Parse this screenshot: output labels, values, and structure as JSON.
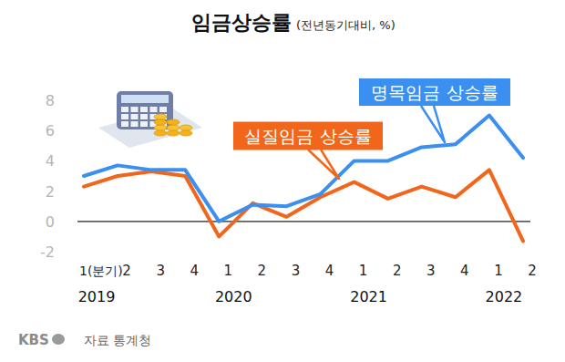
{
  "chart_data": {
    "type": "line",
    "title": "임금상승률",
    "subtitle": "(전년동기대비, %)",
    "categories": [
      "1(분기)",
      "2",
      "3",
      "4",
      "1",
      "2",
      "3",
      "4",
      "1",
      "2",
      "3",
      "4",
      "1",
      "2"
    ],
    "groups": [
      {
        "label": "2019",
        "start": 0
      },
      {
        "label": "2020",
        "start": 4
      },
      {
        "label": "2021",
        "start": 8
      },
      {
        "label": "2022",
        "start": 12
      }
    ],
    "series": [
      {
        "name": "명목임금 상승률",
        "color": "#3a8ff0",
        "values": [
          3.0,
          3.7,
          3.4,
          3.4,
          0.0,
          1.1,
          1.0,
          1.8,
          4.0,
          4.0,
          4.9,
          5.1,
          7.0,
          4.2
        ]
      },
      {
        "name": "실질임금 상승률",
        "color": "#f2661c",
        "values": [
          2.3,
          3.0,
          3.3,
          3.0,
          -1.0,
          1.2,
          0.3,
          1.6,
          2.6,
          1.5,
          2.3,
          1.6,
          3.4,
          -1.3
        ]
      }
    ],
    "ylim": [
      -2,
      8
    ],
    "yticks": [
      -2,
      0,
      2,
      4,
      6,
      8
    ],
    "grid": false,
    "brand": "KBS",
    "source": "자료 통계청"
  }
}
